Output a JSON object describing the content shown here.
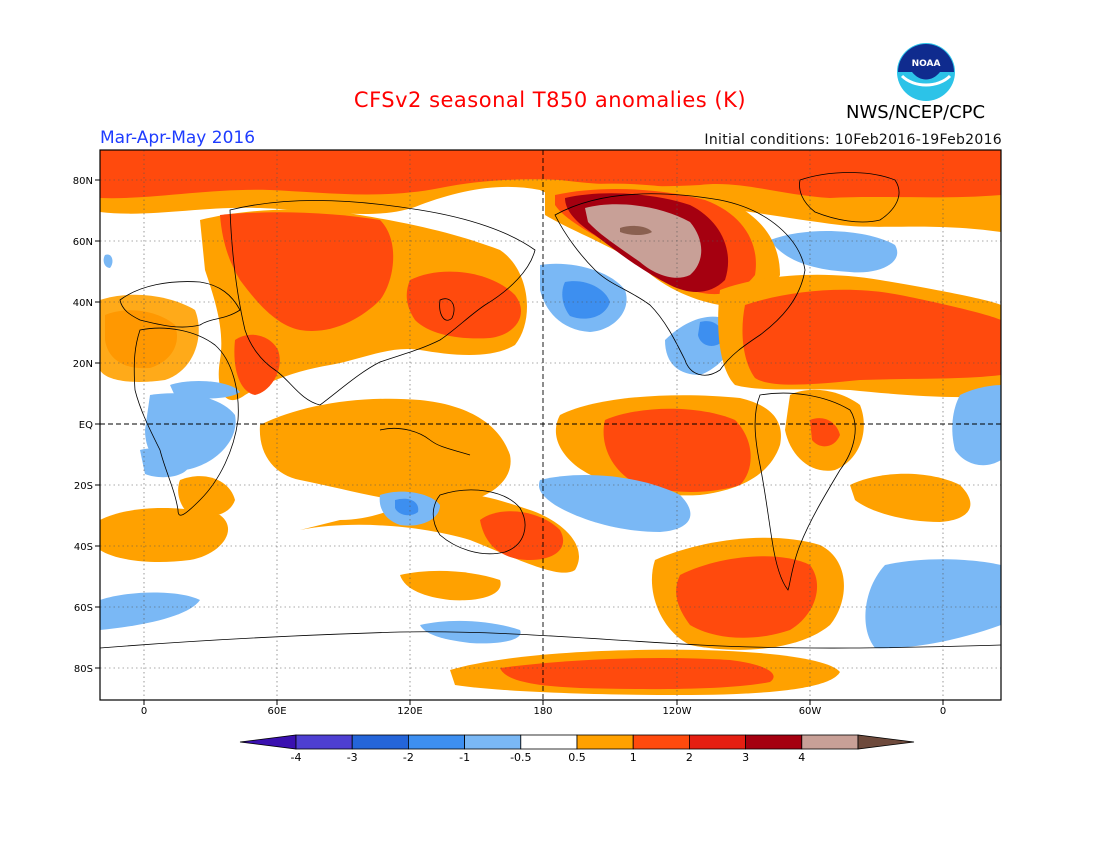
{
  "header": {
    "title": "CFSv2 seasonal T850 anomalies (K)",
    "season": "Mar-Apr-May 2016",
    "initial_conditions": "Initial conditions: 10Feb2016-19Feb2016",
    "agency": "NWS/NCEP/CPC",
    "logo_text": "NOAA"
  },
  "map": {
    "lat_labels": [
      "80N",
      "60N",
      "40N",
      "20N",
      "EQ",
      "20S",
      "40S",
      "60S",
      "80S"
    ],
    "lon_labels": [
      "0",
      "60E",
      "120E",
      "180",
      "120W",
      "60W",
      "0"
    ]
  },
  "colorbar": {
    "colors": [
      "#3a10b0",
      "#4e3fd2",
      "#2465d9",
      "#3d8ff0",
      "#7ab8f5",
      "#ffffff",
      "#ffa100",
      "#ff4a0d",
      "#e51f12",
      "#a50010",
      "#c8a097",
      "#6e4a3c"
    ],
    "labels": [
      "-4",
      "-3",
      "-2",
      "-1",
      "-0.5",
      "0.5",
      "1",
      "2",
      "3",
      "4"
    ]
  }
}
